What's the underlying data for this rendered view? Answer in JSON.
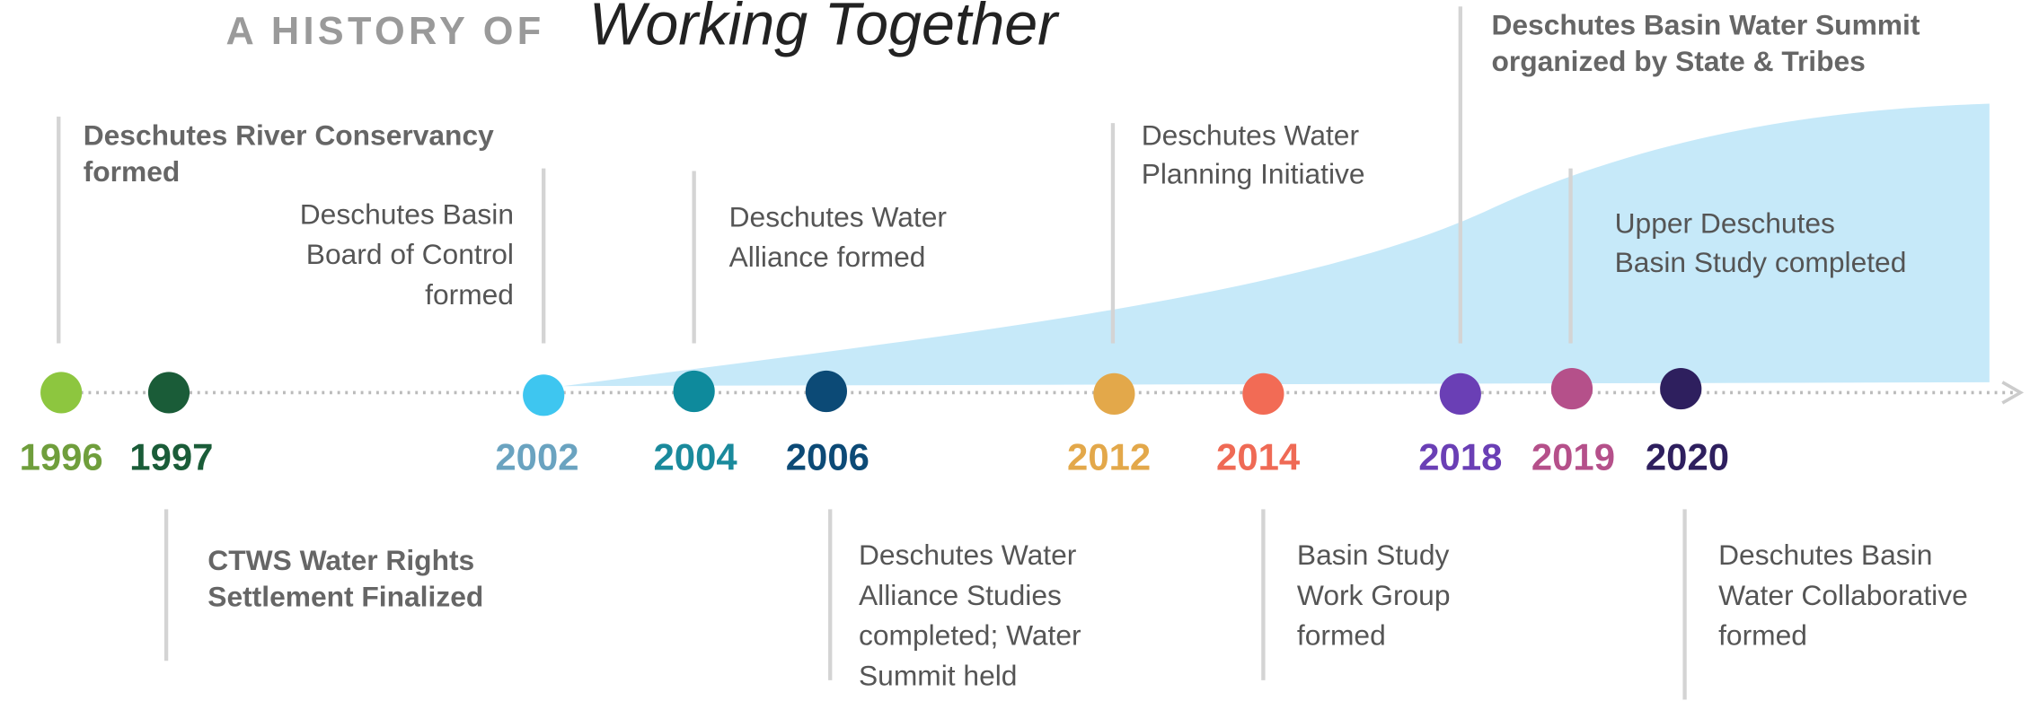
{
  "title": {
    "prefix": "A HISTORY OF",
    "main": "Working Together"
  },
  "events": [
    {
      "year": "1996",
      "color": "#8dc63f",
      "year_color": "#6f9e3c",
      "lines": [
        "Deschutes River Conservancy",
        "formed"
      ],
      "emphasis": true
    },
    {
      "year": "1997",
      "color": "#1a5c38",
      "year_color": "#1a5c38",
      "lines": [
        "CTWS Water Rights",
        "Settlement Finalized"
      ],
      "emphasis": true
    },
    {
      "year": "2002",
      "color": "#3ec6f0",
      "year_color": "#6aa3c0",
      "lines": [
        "Deschutes Basin",
        "Board of Control",
        "formed"
      ],
      "emphasis": false
    },
    {
      "year": "2004",
      "color": "#0e8a9c",
      "year_color": "#1a8a9c",
      "lines": [
        "Deschutes Water",
        "Alliance formed"
      ],
      "emphasis": false
    },
    {
      "year": "2006",
      "color": "#0c4a76",
      "year_color": "#0c4a76",
      "lines": [
        "Deschutes Water",
        "Alliance Studies",
        "completed; Water",
        "Summit held"
      ],
      "emphasis": false
    },
    {
      "year": "2012",
      "color": "#e3a84a",
      "year_color": "#e3a84a",
      "lines": [
        "Deschutes Water",
        "Planning Initiative"
      ],
      "emphasis": false
    },
    {
      "year": "2014",
      "color": "#f26b55",
      "year_color": "#ef6a55",
      "lines": [
        "Basin Study",
        "Work Group",
        "formed"
      ],
      "emphasis": false
    },
    {
      "year": "2018",
      "color": "#6a3fb5",
      "year_color": "#6a3fb5",
      "lines": [
        "Deschutes Basin Water Summit",
        "organized by State & Tribes"
      ],
      "emphasis": true
    },
    {
      "year": "2019",
      "color": "#b5508a",
      "year_color": "#b5508a",
      "lines": [
        "Upper Deschutes",
        "Basin Study completed"
      ],
      "emphasis": false
    },
    {
      "year": "2020",
      "color": "#2e1f5e",
      "year_color": "#2e1f5e",
      "lines": [
        "Deschutes Basin",
        "Water Collaborative",
        "formed"
      ],
      "emphasis": false
    }
  ]
}
